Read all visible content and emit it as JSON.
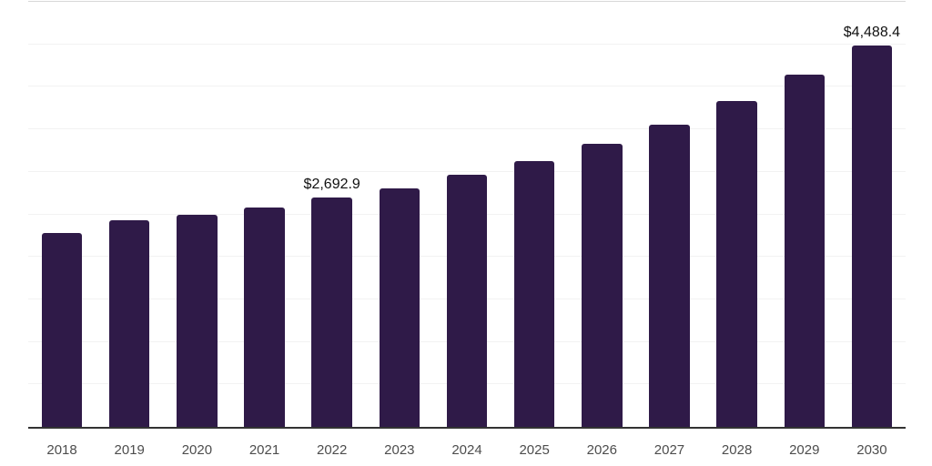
{
  "chart_data": {
    "type": "bar",
    "categories": [
      "2018",
      "2019",
      "2020",
      "2021",
      "2022",
      "2023",
      "2024",
      "2025",
      "2026",
      "2027",
      "2028",
      "2029",
      "2030"
    ],
    "values": [
      2286,
      2432,
      2493,
      2582,
      2692.9,
      2810,
      2966,
      3122,
      3326,
      3554,
      3829,
      4143,
      4488.4
    ],
    "labeled_points": [
      {
        "category": "2022",
        "label": "$2,692.9"
      },
      {
        "category": "2030",
        "label": "$4,488.4"
      }
    ],
    "ylim": [
      0,
      5000
    ],
    "grid_step": 500,
    "grid": "horizontal",
    "legend": "none",
    "bar_width_fraction": 0.6
  },
  "style": {
    "background": "#ffffff",
    "bar_color": "#2F1A48",
    "grid_color": "#f2f2f2",
    "top_border_color": "#d8d8d8",
    "axis_line_color": "#333333",
    "tick_label_color": "#4d4d4d",
    "data_label_color": "#111111"
  }
}
